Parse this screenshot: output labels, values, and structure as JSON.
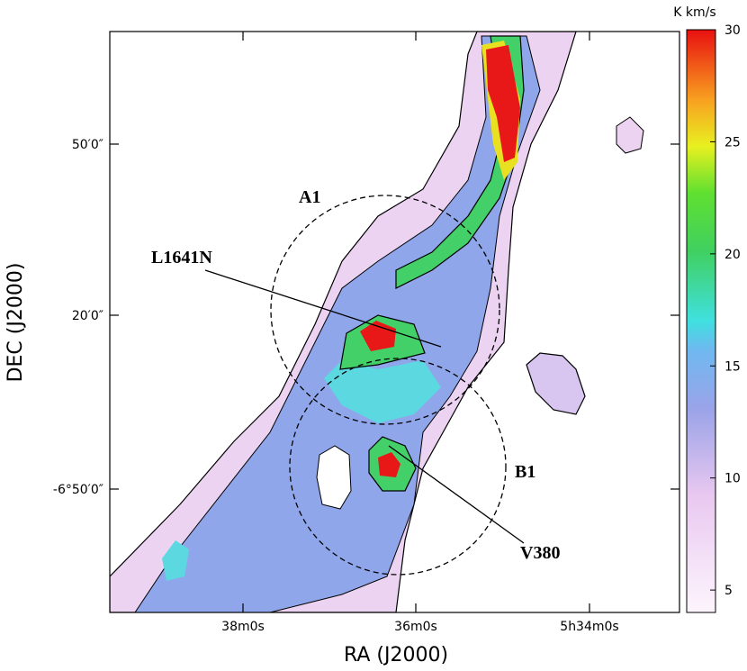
{
  "chart_data": {
    "type": "map",
    "xlabel": "RA (J2000)",
    "ylabel": "DEC (J2000)",
    "x_tick_labels": [
      "38m0s",
      "36m0s",
      "5h34m0s"
    ],
    "y_tick_labels": [
      "50′0″",
      "20′0″",
      "-6°50′0″"
    ],
    "annotations": [
      "A1",
      "L1641N",
      "B1",
      "V380"
    ],
    "colorbar": {
      "label": "K km/s",
      "lim": [
        4,
        30
      ],
      "ticks": [
        5,
        10,
        15,
        20,
        25,
        30
      ]
    }
  }
}
